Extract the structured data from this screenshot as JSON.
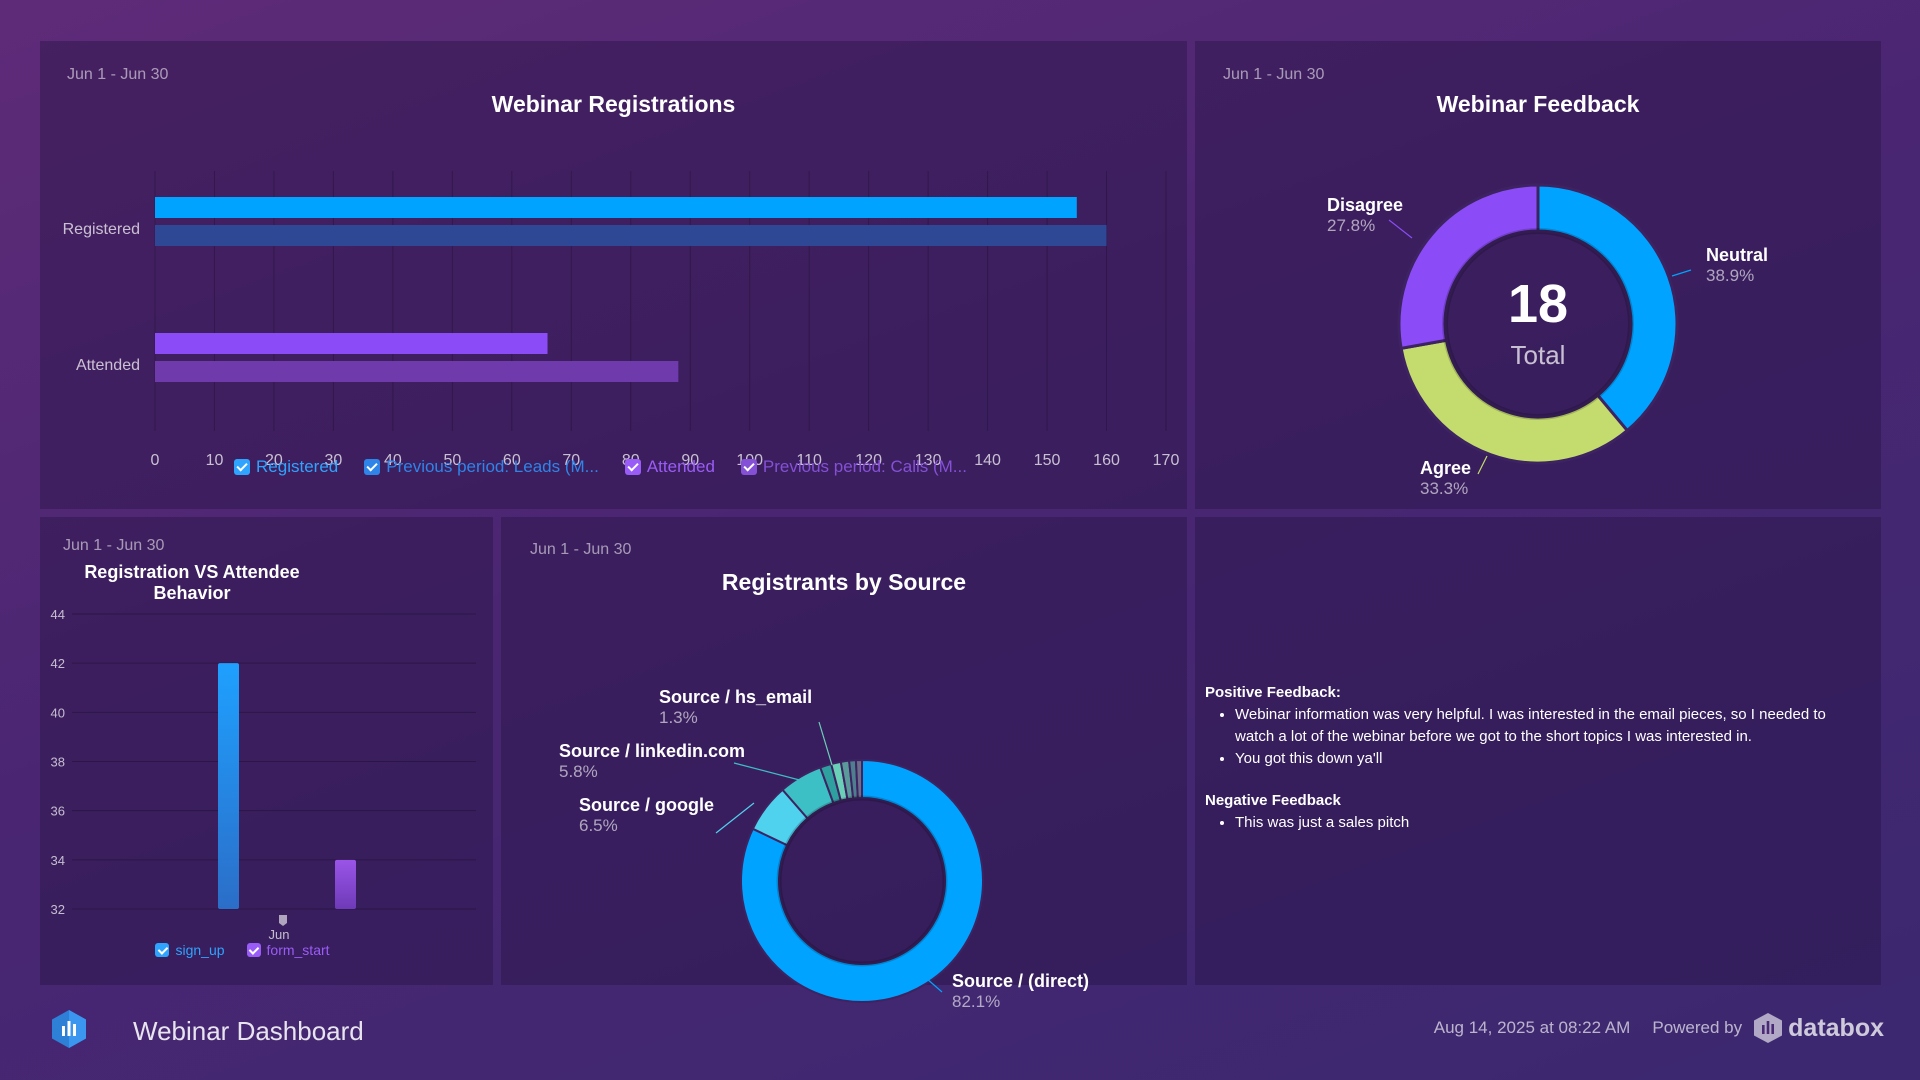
{
  "colors": {
    "blue": "#00a3ff",
    "blue_prev": "#2e4896",
    "purple": "#8b4cf7",
    "purple_prev": "#6e3aac",
    "lime": "#c4dc6e",
    "cyan": "#4fd2ee"
  },
  "registrations": {
    "date_range": "Jun 1 - Jun 30",
    "title": "Webinar Registrations",
    "legend": [
      {
        "label": "Registered",
        "color": "#2ea4ff"
      },
      {
        "label": "Previous period: Leads (M...",
        "color": "#2f84e8"
      },
      {
        "label": "Attended",
        "color": "#9a5cf6"
      },
      {
        "label": "Previous period: Calls (M...",
        "color": "#8450d6"
      }
    ]
  },
  "feedback": {
    "date_range": "Jun 1 - Jun 30",
    "title": "Webinar Feedback",
    "total_value": "18",
    "total_label": "Total"
  },
  "behavior": {
    "date_range": "Jun 1 - Jun 30",
    "title": "Registration VS Attendee Behavior",
    "legend": [
      {
        "label": "sign_up",
        "color": "#2ea4ff"
      },
      {
        "label": "form_start",
        "color": "#9a5cf6"
      }
    ]
  },
  "sources": {
    "date_range": "Jun 1 - Jun 30",
    "title": "Registrants by Source"
  },
  "notes": {
    "positive_heading": "Positive Feedback:",
    "positive_items": [
      "Webinar information was very helpful. I was interested in the email pieces, so I needed to watch a lot of the webinar before we got to the short topics I was interested in.",
      "You got this down ya'll"
    ],
    "negative_heading": "Negative Feedback",
    "negative_items": [
      "This was just a sales pitch"
    ]
  },
  "footer": {
    "title": "Webinar Dashboard",
    "timestamp": "Aug 14, 2025 at 08:22 AM",
    "powered_by": "Powered by",
    "brand": "databox",
    "logo_icon": "bar-chart-logo-icon",
    "brand_icon": "databox-logo-icon"
  },
  "chart_data": [
    {
      "type": "bar",
      "orientation": "horizontal",
      "title": "Webinar Registrations",
      "categories": [
        "Registered",
        "Attended"
      ],
      "series": [
        {
          "name": "Registered",
          "values": [
            155,
            null
          ]
        },
        {
          "name": "Previous period: Leads (M...",
          "values": [
            160,
            null
          ]
        },
        {
          "name": "Attended",
          "values": [
            null,
            66
          ]
        },
        {
          "name": "Previous period: Calls (M...",
          "values": [
            null,
            88
          ]
        }
      ],
      "xlim": [
        0,
        170
      ],
      "xticks": [
        0,
        10,
        20,
        30,
        40,
        50,
        60,
        70,
        80,
        90,
        100,
        110,
        120,
        130,
        140,
        150,
        160,
        170
      ],
      "grid": true,
      "legend_position": "bottom"
    },
    {
      "type": "pie",
      "donut": true,
      "title": "Webinar Feedback",
      "slices": [
        {
          "label": "Neutral",
          "value": 38.9,
          "pct": "38.9%",
          "color": "#00a3ff"
        },
        {
          "label": "Agree",
          "value": 33.3,
          "pct": "33.3%",
          "color": "#c4dc6e"
        },
        {
          "label": "Disagree",
          "value": 27.8,
          "pct": "27.8%",
          "color": "#8b4cf7"
        }
      ],
      "center_value": "18",
      "center_label": "Total"
    },
    {
      "type": "bar",
      "title": "Registration VS Attendee Behavior",
      "categories": [
        "Jun"
      ],
      "series": [
        {
          "name": "sign_up",
          "values": [
            42
          ]
        },
        {
          "name": "form_start",
          "values": [
            34
          ]
        }
      ],
      "ylim": [
        32,
        44
      ],
      "yticks": [
        32,
        34,
        36,
        38,
        40,
        42,
        44
      ],
      "grid": true,
      "legend_position": "bottom"
    },
    {
      "type": "pie",
      "donut": true,
      "title": "Registrants by Source",
      "slices": [
        {
          "label": "Source / (direct)",
          "value": 82.1,
          "pct": "82.1%",
          "color": "#00a3ff",
          "labeled": true
        },
        {
          "label": "Source / google",
          "value": 6.5,
          "pct": "6.5%",
          "color": "#4fd2ee",
          "labeled": true
        },
        {
          "label": "Source / linkedin.com",
          "value": 5.8,
          "pct": "5.8%",
          "color": "#3dbfc6",
          "labeled": true
        },
        {
          "label": "",
          "value": 1.5,
          "pct": "",
          "color": "#2fa0a0",
          "labeled": false
        },
        {
          "label": "Source / hs_email",
          "value": 1.3,
          "pct": "1.3%",
          "color": "#6ad0b8",
          "labeled": true
        },
        {
          "label": "",
          "value": 1.1,
          "pct": "",
          "color": "#5b9a9a",
          "labeled": false
        },
        {
          "label": "",
          "value": 0.9,
          "pct": "",
          "color": "#4d7f8f",
          "labeled": false
        },
        {
          "label": "",
          "value": 0.8,
          "pct": "",
          "color": "#6b6f8a",
          "labeled": false
        }
      ]
    }
  ]
}
